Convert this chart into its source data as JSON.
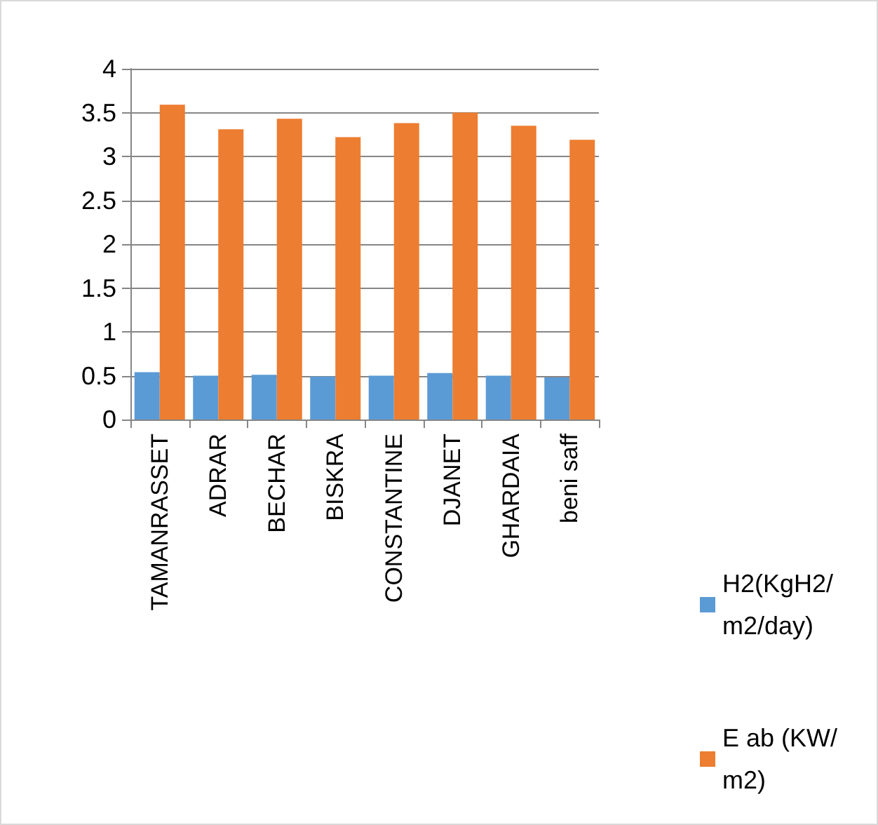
{
  "chart_data": {
    "type": "bar",
    "categories": [
      "TAMANRASSET",
      "ADRAR",
      "BECHAR",
      "BISKRA",
      "CONSTANTINE",
      "DJANET",
      "GHARDAIA",
      "beni saff"
    ],
    "series": [
      {
        "name": "H2(KgH2/m2/day)",
        "color": "#5b9bd5",
        "values": [
          0.54,
          0.5,
          0.51,
          0.49,
          0.5,
          0.53,
          0.5,
          0.48
        ]
      },
      {
        "name": "E ab (KW/m2)",
        "color": "#ed7d31",
        "values": [
          3.59,
          3.31,
          3.43,
          3.22,
          3.38,
          3.5,
          3.35,
          3.19
        ]
      }
    ],
    "ylim": [
      0,
      4
    ],
    "yticks": [
      0,
      0.5,
      1,
      1.5,
      2,
      2.5,
      3,
      3.5,
      4
    ],
    "grid": "y",
    "legend": "right"
  }
}
